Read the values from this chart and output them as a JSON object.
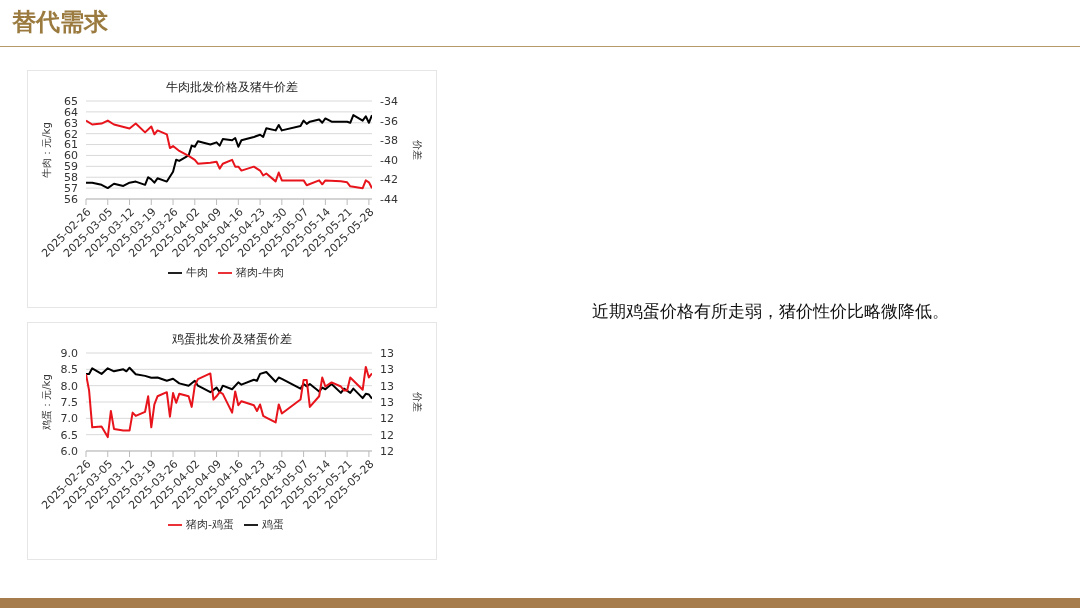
{
  "chart_data": [
    {
      "type": "other",
      "title": "替代需求",
      "annotations": [
        "近期鸡蛋价格有所走弱，猪价性价比略微降低。"
      ]
    },
    {
      "type": "line",
      "title": "牛肉批发价格及猪牛价差",
      "ylabel": "牛肉：元/kg",
      "y2label": "价差",
      "series": [
        {
          "name": "牛肉",
          "color": "#000000",
          "x": [
            "2025-02-26",
            "2025-02-28",
            "2025-03-03",
            "2025-03-05",
            "2025-03-07",
            "2025-03-10",
            "2025-03-12",
            "2025-03-14",
            "2025-03-17",
            "2025-03-18",
            "2025-03-19",
            "2025-03-20",
            "2025-03-21",
            "2025-03-24",
            "2025-03-26",
            "2025-03-27",
            "2025-03-28",
            "2025-03-31",
            "2025-04-01",
            "2025-04-02",
            "2025-04-03",
            "2025-04-07",
            "2025-04-09",
            "2025-04-10",
            "2025-04-11",
            "2025-04-14",
            "2025-04-15",
            "2025-04-16",
            "2025-04-17",
            "2025-04-21",
            "2025-04-23",
            "2025-04-24",
            "2025-04-25",
            "2025-04-28",
            "2025-04-29",
            "2025-04-30",
            "2025-05-06",
            "2025-05-07",
            "2025-05-08",
            "2025-05-09",
            "2025-05-12",
            "2025-05-13",
            "2025-05-14",
            "2025-05-16",
            "2025-05-19",
            "2025-05-21",
            "2025-05-22",
            "2025-05-23",
            "2025-05-26",
            "2025-05-27",
            "2025-05-28",
            "2025-05-29"
          ],
          "values": [
            57.5,
            57.5,
            57.3,
            57.0,
            57.4,
            57.2,
            57.5,
            57.6,
            57.3,
            58.0,
            57.8,
            57.5,
            57.9,
            57.6,
            58.5,
            59.6,
            59.5,
            60.0,
            60.9,
            60.8,
            61.3,
            61.0,
            61.2,
            60.9,
            61.5,
            61.4,
            61.6,
            60.8,
            61.4,
            61.7,
            61.9,
            61.7,
            62.5,
            62.3,
            62.8,
            62.3,
            62.7,
            63.2,
            62.9,
            63.1,
            63.3,
            63.0,
            63.4,
            63.1,
            63.1,
            63.1,
            63.0,
            63.7,
            63.2,
            63.6,
            63.0,
            63.7
          ]
        },
        {
          "name": "猪肉-牛肉",
          "color": "#e8141c",
          "axis": "y2",
          "x": [
            "2025-02-26",
            "2025-02-28",
            "2025-03-03",
            "2025-03-05",
            "2025-03-07",
            "2025-03-12",
            "2025-03-14",
            "2025-03-17",
            "2025-03-19",
            "2025-03-20",
            "2025-03-21",
            "2025-03-24",
            "2025-03-25",
            "2025-03-26",
            "2025-03-28",
            "2025-03-31",
            "2025-04-02",
            "2025-04-03",
            "2025-04-07",
            "2025-04-09",
            "2025-04-10",
            "2025-04-11",
            "2025-04-14",
            "2025-04-15",
            "2025-04-16",
            "2025-04-17",
            "2025-04-21",
            "2025-04-23",
            "2025-04-24",
            "2025-04-25",
            "2025-04-28",
            "2025-04-29",
            "2025-04-30",
            "2025-05-06",
            "2025-05-07",
            "2025-05-08",
            "2025-05-12",
            "2025-05-13",
            "2025-05-14",
            "2025-05-19",
            "2025-05-21",
            "2025-05-22",
            "2025-05-26",
            "2025-05-27",
            "2025-05-28",
            "2025-05-29"
          ],
          "values": [
            -36.0,
            -36.4,
            -36.3,
            -36.0,
            -36.4,
            -36.8,
            -36.3,
            -37.2,
            -36.6,
            -37.4,
            -37.0,
            -37.4,
            -38.8,
            -38.6,
            -39.1,
            -39.6,
            -40.0,
            -40.4,
            -40.3,
            -40.2,
            -40.9,
            -40.4,
            -40.0,
            -40.7,
            -40.7,
            -41.1,
            -40.7,
            -41.1,
            -41.6,
            -41.4,
            -42.2,
            -41.3,
            -42.1,
            -42.1,
            -42.1,
            -42.6,
            -42.1,
            -42.5,
            -42.1,
            -42.2,
            -42.3,
            -42.7,
            -42.9,
            -42.1,
            -42.3,
            -42.9
          ]
        }
      ],
      "xlim": [
        "2025-02-26",
        "2025-05-29"
      ],
      "xticks": [
        "2025-02-26",
        "2025-03-05",
        "2025-03-12",
        "2025-03-19",
        "2025-03-26",
        "2025-04-02",
        "2025-04-09",
        "2025-04-16",
        "2025-04-23",
        "2025-04-30",
        "2025-05-07",
        "2025-05-14",
        "2025-05-21",
        "2025-05-28"
      ],
      "ylim": [
        56,
        65
      ],
      "yticks": [
        56,
        57,
        58,
        59,
        60,
        61,
        62,
        63,
        64,
        65
      ],
      "y2lim": [
        -44,
        -34
      ],
      "y2ticks": [
        -44,
        -42,
        -40,
        -38,
        -36,
        -34
      ],
      "grid": "y",
      "legend": "bottom"
    },
    {
      "type": "line",
      "title": "鸡蛋批发价及猪蛋价差",
      "ylabel": "鸡蛋：元/kg",
      "y2label": "价差",
      "series": [
        {
          "name": "鸡蛋",
          "color": "#000000",
          "x": [
            "2025-02-26",
            "2025-02-27",
            "2025-02-28",
            "2025-03-03",
            "2025-03-05",
            "2025-03-07",
            "2025-03-10",
            "2025-03-11",
            "2025-03-12",
            "2025-03-14",
            "2025-03-17",
            "2025-03-19",
            "2025-03-21",
            "2025-03-24",
            "2025-03-26",
            "2025-03-28",
            "2025-03-31",
            "2025-04-02",
            "2025-04-03",
            "2025-04-07",
            "2025-04-09",
            "2025-04-10",
            "2025-04-11",
            "2025-04-14",
            "2025-04-16",
            "2025-04-17",
            "2025-04-21",
            "2025-04-22",
            "2025-04-23",
            "2025-04-25",
            "2025-04-28",
            "2025-04-29",
            "2025-04-30",
            "2025-05-06",
            "2025-05-07",
            "2025-05-08",
            "2025-05-09",
            "2025-05-12",
            "2025-05-13",
            "2025-05-14",
            "2025-05-16",
            "2025-05-19",
            "2025-05-20",
            "2025-05-22",
            "2025-05-23",
            "2025-05-26",
            "2025-05-27",
            "2025-05-28",
            "2025-05-29"
          ],
          "values": [
            8.36,
            8.36,
            8.53,
            8.36,
            8.53,
            8.44,
            8.5,
            8.44,
            8.55,
            8.35,
            8.3,
            8.24,
            8.25,
            8.15,
            8.21,
            8.07,
            8.0,
            8.15,
            8.0,
            7.8,
            7.94,
            7.8,
            8.0,
            7.89,
            8.1,
            8.03,
            8.18,
            8.15,
            8.36,
            8.42,
            8.12,
            8.25,
            8.21,
            7.91,
            8.05,
            7.98,
            8.05,
            7.82,
            7.94,
            7.89,
            8.05,
            7.78,
            7.91,
            7.78,
            7.91,
            7.62,
            7.75,
            7.73,
            7.6
          ]
        },
        {
          "name": "猪肉-鸡蛋",
          "color": "#e8141c",
          "axis": "y2",
          "x": [
            "2025-02-26",
            "2025-02-27",
            "2025-02-28",
            "2025-03-03",
            "2025-03-05",
            "2025-03-06",
            "2025-03-07",
            "2025-03-10",
            "2025-03-12",
            "2025-03-13",
            "2025-03-14",
            "2025-03-17",
            "2025-03-18",
            "2025-03-19",
            "2025-03-20",
            "2025-03-21",
            "2025-03-24",
            "2025-03-25",
            "2025-03-26",
            "2025-03-27",
            "2025-03-28",
            "2025-03-31",
            "2025-04-01",
            "2025-04-02",
            "2025-04-03",
            "2025-04-07",
            "2025-04-08",
            "2025-04-09",
            "2025-04-10",
            "2025-04-11",
            "2025-04-14",
            "2025-04-15",
            "2025-04-16",
            "2025-04-17",
            "2025-04-21",
            "2025-04-22",
            "2025-04-23",
            "2025-04-24",
            "2025-04-25",
            "2025-04-28",
            "2025-04-29",
            "2025-04-30",
            "2025-05-06",
            "2025-05-07",
            "2025-05-08",
            "2025-05-09",
            "2025-05-12",
            "2025-05-13",
            "2025-05-14",
            "2025-05-16",
            "2025-05-19",
            "2025-05-20",
            "2025-05-21",
            "2025-05-22",
            "2025-05-26",
            "2025-05-27",
            "2025-05-28",
            "2025-05-29"
          ],
          "values": [
            12.94,
            12.74,
            12.29,
            12.3,
            12.17,
            12.49,
            12.27,
            12.25,
            12.25,
            12.47,
            12.43,
            12.48,
            12.67,
            12.29,
            12.57,
            12.67,
            12.72,
            12.42,
            12.71,
            12.59,
            12.7,
            12.67,
            12.54,
            12.8,
            12.88,
            12.95,
            12.63,
            12.67,
            12.72,
            12.7,
            12.47,
            12.73,
            12.56,
            12.61,
            12.56,
            12.49,
            12.57,
            12.43,
            12.41,
            12.35,
            12.57,
            12.46,
            12.63,
            12.87,
            12.87,
            12.54,
            12.67,
            12.9,
            12.79,
            12.84,
            12.79,
            12.74,
            12.74,
            12.9,
            12.75,
            13.03,
            12.9,
            12.95
          ]
        }
      ],
      "xlim": [
        "2025-02-26",
        "2025-05-29"
      ],
      "xticks": [
        "2025-02-26",
        "2025-03-05",
        "2025-03-12",
        "2025-03-19",
        "2025-03-26",
        "2025-04-02",
        "2025-04-09",
        "2025-04-16",
        "2025-04-23",
        "2025-04-30",
        "2025-05-07",
        "2025-05-14",
        "2025-05-21",
        "2025-05-28"
      ],
      "ylim": [
        6,
        9
      ],
      "yticks": [
        {
          "value": 6,
          "label": "6.0"
        },
        {
          "value": 6.5,
          "label": "6.5"
        },
        {
          "value": 7,
          "label": "7.0"
        },
        {
          "value": 7.5,
          "label": "7.5"
        },
        {
          "value": 8,
          "label": "8.0"
        },
        {
          "value": 8.5,
          "label": "8.5"
        },
        {
          "value": 9,
          "label": "9.0"
        }
      ],
      "y2lim": [
        12,
        13.2
      ],
      "y2ticks": [
        {
          "value": 12,
          "label": "12"
        },
        {
          "value": 12.2,
          "label": "12"
        },
        {
          "value": 12.4,
          "label": "12"
        },
        {
          "value": 12.6,
          "label": "13"
        },
        {
          "value": 12.8,
          "label": "13"
        },
        {
          "value": 13,
          "label": "13"
        },
        {
          "value": 13.2,
          "label": "13"
        }
      ],
      "grid": "y",
      "legend": "bottom"
    }
  ]
}
